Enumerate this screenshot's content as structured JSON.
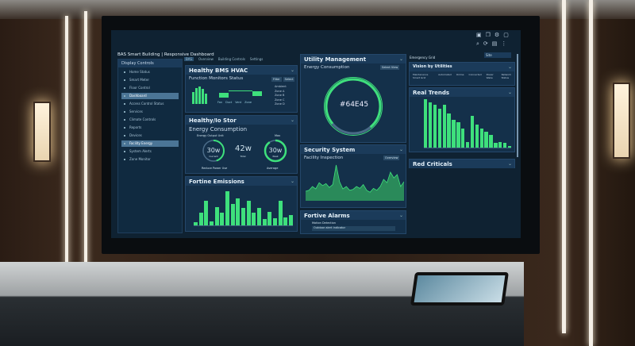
{
  "header": {
    "title": "BAS Smart Building | Responsive Dashboard",
    "tabs": [
      "BAS",
      "Overview",
      "Building Controls",
      "Settings"
    ]
  },
  "toolbar_icons": [
    "lock-icon",
    "copy-icon",
    "settings-icon",
    "window-icon",
    "search-icon",
    "refresh-icon",
    "layout-icon",
    "more-icon"
  ],
  "sidebar": {
    "title": "Display Controls",
    "items": [
      "Home Status",
      "Smart Meter",
      "Floor Control",
      "Dashboard",
      "Access Control Status",
      "Services",
      "Climate Controls",
      "Reports",
      "Devices",
      "Facility Energy",
      "System Alerts",
      "Zone Monitor"
    ],
    "selected": [
      3,
      9
    ]
  },
  "hvac": {
    "title": "Healthy BMS HVAC",
    "subtitle": "Function Monitors Status",
    "buttons": [
      "Filter",
      "Select"
    ],
    "legend": [
      "Ambient",
      "Zone A",
      "Zone B",
      "Zone C",
      "Zone D"
    ],
    "bars": [
      70,
      90,
      100,
      85,
      60
    ],
    "labels": [
      "Fan",
      "Duct",
      "Vent",
      "Zone"
    ]
  },
  "storage": {
    "title": "Healthy/Io Stor",
    "subtitle": "Energy Consumption",
    "gauge_label": "Energy Output Unit",
    "gauges": [
      {
        "value": "30w",
        "sub": "Current",
        "fill": 0.45
      },
      {
        "value": "42w",
        "sub": "Total"
      },
      {
        "value": "30w",
        "sub": "Peak",
        "fill": 0.9,
        "label": "Max"
      }
    ],
    "footer": [
      "Reduce Power Use",
      "Average"
    ]
  },
  "fortine": {
    "title": "Fortine Emissions",
    "values": [
      8,
      35,
      68,
      12,
      52,
      35,
      95,
      60,
      75,
      48,
      68,
      35,
      50,
      18,
      38,
      20,
      70,
      22,
      28
    ]
  },
  "utility": {
    "title": "Utility Management",
    "subtitle": "Energy Consumption",
    "button": "Select View",
    "center": "#64E45",
    "fill": 0.75
  },
  "security": {
    "title": "Security System",
    "subtitle": "Facility Inspection",
    "button": "Overview",
    "values": [
      20,
      22,
      30,
      25,
      38,
      32,
      36,
      28,
      34,
      75,
      40,
      25,
      30,
      22,
      24,
      30,
      26,
      34,
      22,
      18,
      26,
      22,
      30,
      45,
      38,
      60,
      48,
      55,
      30,
      40
    ]
  },
  "alarms": {
    "title": "Fortive Alarms",
    "items": [
      "Motion Detection",
      "Outdoor alert indicator"
    ]
  },
  "right": {
    "label": "Emergency Grid",
    "select": "Site",
    "title": "Vision by Utilities",
    "status": [
      "Maintenance Smart Grid",
      "Automated",
      "Online",
      "Connected",
      "Power Wake",
      "Network Status"
    ]
  },
  "trends": {
    "title": "Real Trends",
    "values": [
      100,
      94,
      88,
      80,
      88,
      70,
      58,
      52,
      40,
      12,
      65,
      48,
      40,
      32,
      26,
      10,
      12,
      10,
      4
    ]
  },
  "criticals": {
    "title": "Red Criticals"
  },
  "colors": {
    "accent": "#3ee07c",
    "panel": "#14304a",
    "screen": "#0f2232"
  }
}
